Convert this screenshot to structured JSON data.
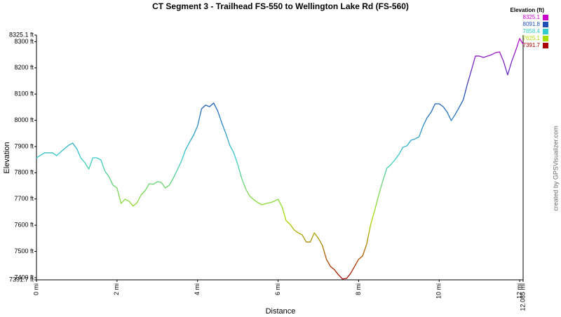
{
  "chart_data": {
    "type": "line",
    "title": "CT Segment 3 - Trailhead FS-550 to Wellington Lake Rd (FS-560)",
    "xlabel": "Distance",
    "ylabel": "Elevation",
    "credit": "created by GPSVisualizer.com",
    "x": [
      0,
      0.2,
      0.4,
      0.5,
      0.6,
      0.8,
      0.9,
      1.0,
      1.1,
      1.2,
      1.3,
      1.4,
      1.5,
      1.6,
      1.7,
      1.8,
      1.9,
      2.0,
      2.1,
      2.2,
      2.3,
      2.4,
      2.5,
      2.6,
      2.7,
      2.8,
      2.9,
      3.0,
      3.1,
      3.2,
      3.3,
      3.4,
      3.5,
      3.6,
      3.7,
      3.8,
      3.9,
      4.0,
      4.1,
      4.2,
      4.3,
      4.4,
      4.5,
      4.6,
      4.7,
      4.8,
      4.9,
      5.0,
      5.1,
      5.2,
      5.3,
      5.4,
      5.5,
      5.6,
      5.7,
      5.8,
      5.9,
      6.0,
      6.1,
      6.2,
      6.3,
      6.4,
      6.5,
      6.6,
      6.7,
      6.8,
      6.9,
      7.0,
      7.1,
      7.2,
      7.3,
      7.4,
      7.5,
      7.6,
      7.7,
      7.8,
      7.9,
      8.0,
      8.1,
      8.2,
      8.3,
      8.4,
      8.5,
      8.6,
      8.7,
      8.8,
      8.9,
      9.0,
      9.1,
      9.2,
      9.3,
      9.4,
      9.5,
      9.6,
      9.7,
      9.8,
      9.9,
      10.0,
      10.1,
      10.2,
      10.3,
      10.4,
      10.5,
      10.6,
      10.7,
      10.8,
      10.9,
      11.0,
      11.1,
      11.2,
      11.3,
      11.4,
      11.5,
      11.6,
      11.7,
      11.8,
      11.9,
      12.0,
      12.085
    ],
    "series": [
      {
        "values": [
          7857,
          7876,
          7876,
          7865,
          7879,
          7905,
          7913,
          7892,
          7857,
          7839,
          7814,
          7857,
          7857,
          7849,
          7806,
          7785,
          7753,
          7742,
          7683,
          7699,
          7691,
          7673,
          7686,
          7716,
          7732,
          7758,
          7756,
          7766,
          7763,
          7742,
          7753,
          7780,
          7812,
          7844,
          7887,
          7916,
          7943,
          7978,
          8044,
          8058,
          8052,
          8066,
          8036,
          7991,
          7951,
          7905,
          7876,
          7831,
          7777,
          7737,
          7710,
          7697,
          7686,
          7678,
          7683,
          7686,
          7691,
          7699,
          7670,
          7617,
          7603,
          7582,
          7571,
          7563,
          7536,
          7536,
          7571,
          7550,
          7523,
          7470,
          7443,
          7430,
          7411,
          7395,
          7397,
          7416,
          7443,
          7470,
          7483,
          7528,
          7603,
          7657,
          7716,
          7769,
          7817,
          7831,
          7849,
          7870,
          7897,
          7903,
          7924,
          7929,
          7937,
          7978,
          8010,
          8031,
          8063,
          8063,
          8052,
          8031,
          7999,
          8023,
          8050,
          8079,
          8138,
          8191,
          8245,
          8245,
          8240,
          8245,
          8250,
          8258,
          8261,
          8224,
          8173,
          8224,
          8266,
          8312,
          8290
        ]
      }
    ],
    "xlim": [
      0,
      12.085
    ],
    "xticks": [
      {
        "value": 0,
        "label": "0 mi"
      },
      {
        "value": 2,
        "label": "2 mi"
      },
      {
        "value": 4,
        "label": "4 mi"
      },
      {
        "value": 6,
        "label": "6 mi"
      },
      {
        "value": 8,
        "label": "8 mi"
      },
      {
        "value": 10,
        "label": "10 mi"
      },
      {
        "value": 12,
        "label": "12 mi"
      },
      {
        "value": 12.085,
        "label": "12.085 mi"
      }
    ],
    "ylim": [
      7391.7,
      8325.1
    ],
    "yticks": [
      {
        "value": 7391.7,
        "label": "7391.7 ft"
      },
      {
        "value": 7400,
        "label": "7400 ft"
      },
      {
        "value": 7500,
        "label": "7500 ft"
      },
      {
        "value": 7600,
        "label": "7600 ft"
      },
      {
        "value": 7700,
        "label": "7700 ft"
      },
      {
        "value": 7800,
        "label": "7800 ft"
      },
      {
        "value": 7900,
        "label": "7900 ft"
      },
      {
        "value": 8000,
        "label": "8000 ft"
      },
      {
        "value": 8100,
        "label": "8100 ft"
      },
      {
        "value": 8200,
        "label": "8200 ft"
      },
      {
        "value": 8300,
        "label": "8300 ft"
      },
      {
        "value": 8325.1,
        "label": "8325.1 ft"
      }
    ],
    "legend": {
      "title": "Elevation (ft)",
      "position": "upper right",
      "entries": [
        {
          "value": 8325.1,
          "color": "#cc00cc"
        },
        {
          "value": 8091.8,
          "color": "#1f4fb4"
        },
        {
          "value": 7858.4,
          "color": "#33cccc"
        },
        {
          "value": 7625.1,
          "color": "#aadd00"
        },
        {
          "value": 7391.7,
          "color": "#aa0000"
        }
      ]
    }
  }
}
